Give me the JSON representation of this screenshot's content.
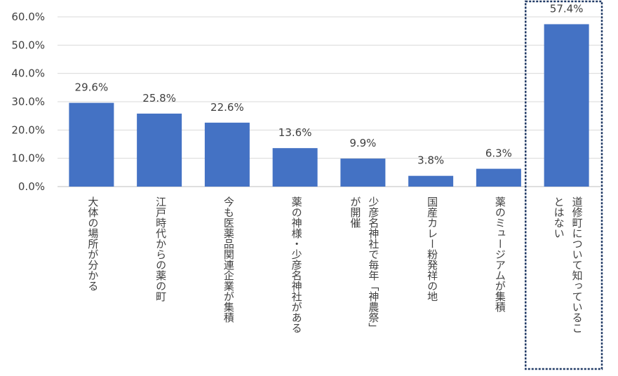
{
  "chart_data": {
    "type": "bar",
    "ylim": [
      0,
      60
    ],
    "ytick_step": 10,
    "ytick_format": "percent_1dp",
    "grid": true,
    "bar_color": "#4472C4",
    "highlight_color": "#1F3864",
    "highlight_index": 7,
    "categories": [
      [
        "大体の場所が分かる"
      ],
      [
        "江戸時代からの薬の町"
      ],
      [
        "今も医薬品関連企業が集積"
      ],
      [
        "薬の神様・少彦名神社がある"
      ],
      [
        "少彦名神社で毎年「神農祭」",
        "が開催"
      ],
      [
        "国産カレー粉発祥の地"
      ],
      [
        "薬のミュージアムが集積"
      ],
      [
        "道修町について知っているこ",
        "とはない"
      ]
    ],
    "values": [
      29.6,
      25.8,
      22.6,
      13.6,
      9.9,
      3.8,
      6.3,
      57.4
    ],
    "data_labels": [
      "29.6%",
      "25.8%",
      "22.6%",
      "13.6%",
      "9.9%",
      "3.8%",
      "6.3%",
      "57.4%"
    ],
    "yticks": [
      "0.0%",
      "10.0%",
      "20.0%",
      "30.0%",
      "40.0%",
      "50.0%",
      "60.0%"
    ]
  }
}
